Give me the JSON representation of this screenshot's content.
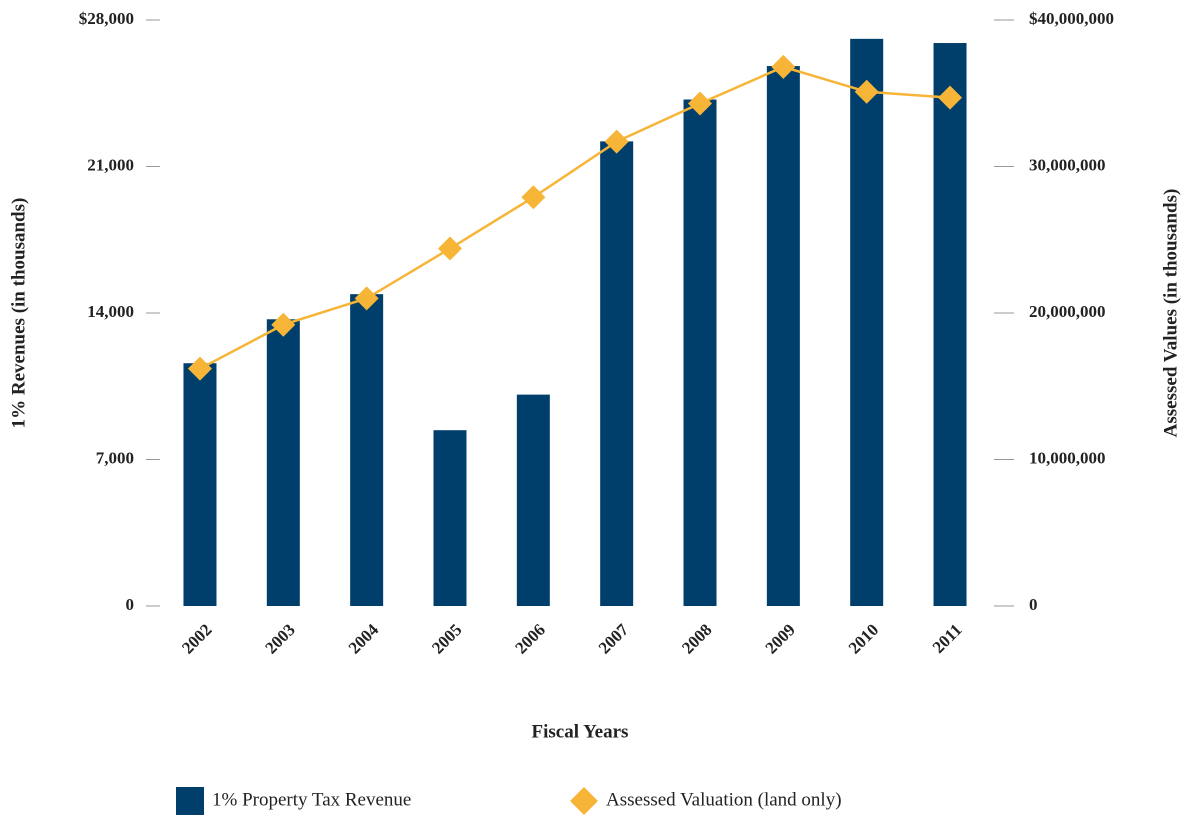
{
  "chart_data": {
    "type": "bar_line",
    "categories": [
      "2002",
      "2003",
      "2004",
      "2005",
      "2006",
      "2007",
      "2008",
      "2009",
      "2010",
      "2011"
    ],
    "xlabel": "Fiscal Years",
    "ylabel": "1% Revenues (in thousands)",
    "y2label": "Assessed Values (in thousands)",
    "ylim": [
      0,
      28000
    ],
    "yticks": [
      0,
      {
        "value": 7000,
        "label": "7,000"
      },
      {
        "value": 14000,
        "label": "14,000"
      },
      {
        "value": 21000,
        "label": "21,000"
      },
      {
        "value": 28000,
        "label": "$28,000"
      }
    ],
    "y2lim": [
      0,
      40000000
    ],
    "y2ticks": [
      0,
      {
        "value": 10000000,
        "label": "10,000,000"
      },
      {
        "value": 20000000,
        "label": "20,000,000"
      },
      {
        "value": 30000000,
        "label": "30,000,000"
      },
      {
        "value": 40000000,
        "label": "$40,000,000"
      }
    ],
    "series": [
      {
        "name": "1% Property Tax Revenue",
        "type": "bar",
        "color": "#003f6b",
        "values": [
          11600,
          13700,
          14900,
          8400,
          10100,
          22200,
          24200,
          25800,
          27100,
          26900
        ]
      },
      {
        "name": "Assessed Valuation (land only)",
        "type": "line",
        "axis": "y2",
        "color": "#f7b538",
        "values": [
          16200000,
          19200000,
          21000000,
          24400000,
          27900000,
          31700000,
          34300000,
          36800000,
          35100000,
          34700000
        ]
      }
    ]
  }
}
